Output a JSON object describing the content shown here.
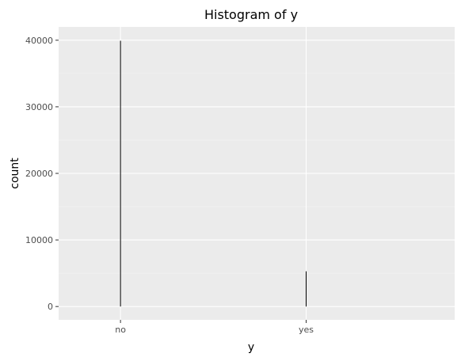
{
  "chart_data": {
    "type": "bar",
    "title": "Histogram of y",
    "xlabel": "y",
    "ylabel": "count",
    "categories": [
      "no",
      "yes"
    ],
    "values": [
      39922,
      5289
    ],
    "ylim": [
      -2000,
      42000
    ],
    "yticks": [
      0,
      10000,
      20000,
      30000,
      40000
    ],
    "ytick_labels": [
      "0",
      "10000",
      "20000",
      "30000",
      "40000"
    ],
    "grid": true,
    "legend": "none",
    "colors": {
      "panel": "#ebebeb",
      "grid_major": "#ffffff",
      "grid_minor": "#f5f5f5",
      "bar": "#000000"
    }
  }
}
